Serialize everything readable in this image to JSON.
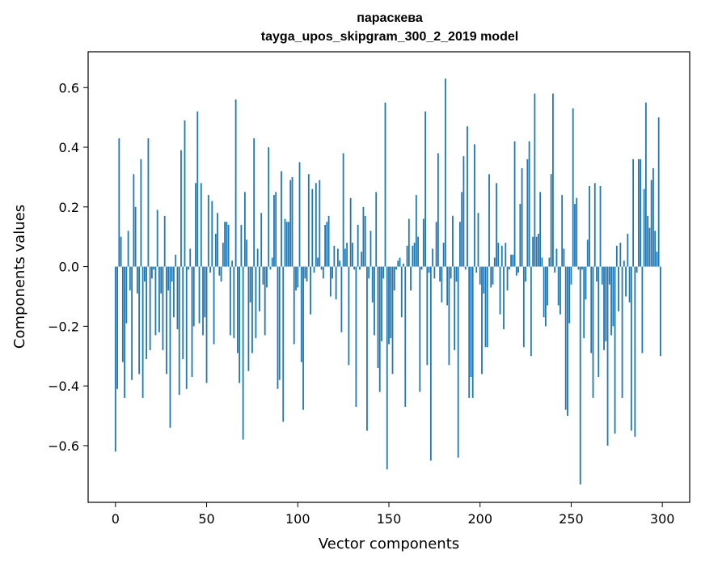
{
  "chart_data": {
    "type": "bar",
    "title": "параскева",
    "subtitle": "tayga_upos_skipgram_300_2_2019 model",
    "xlabel": "Vector components",
    "ylabel": "Components values",
    "xlim": [
      -15,
      315
    ],
    "ylim": [
      -0.79,
      0.72
    ],
    "xticks": [
      0,
      50,
      100,
      150,
      200,
      250,
      300
    ],
    "yticks": [
      -0.6,
      -0.4,
      -0.2,
      0.0,
      0.2,
      0.4,
      0.6
    ],
    "ytick_labels": [
      "−0.6",
      "−0.4",
      "−0.2",
      "0.0",
      "0.2",
      "0.4",
      "0.6"
    ],
    "grid": false,
    "bar_color": "#1f77b4",
    "series": [
      {
        "values": [
          -0.62,
          -0.41,
          0.43,
          0.1,
          -0.32,
          -0.44,
          -0.19,
          0.12,
          -0.08,
          -0.38,
          0.31,
          0.2,
          -0.09,
          -0.36,
          0.36,
          -0.44,
          -0.05,
          -0.31,
          0.43,
          -0.28,
          -0.04,
          -0.01,
          -0.23,
          0.19,
          -0.22,
          -0.09,
          -0.28,
          0.17,
          -0.36,
          -0.08,
          -0.54,
          -0.05,
          -0.17,
          0.04,
          -0.21,
          -0.43,
          0.39,
          -0.31,
          0.49,
          -0.41,
          -0.01,
          0.06,
          -0.37,
          -0.2,
          0.28,
          0.52,
          -0.19,
          0.28,
          -0.23,
          -0.17,
          -0.39,
          0.24,
          -0.02,
          0.22,
          -0.26,
          0.11,
          0.18,
          -0.03,
          -0.05,
          0.08,
          0.15,
          0.15,
          0.14,
          -0.23,
          0.02,
          -0.24,
          0.56,
          -0.29,
          -0.39,
          0.14,
          -0.58,
          0.25,
          0.09,
          -0.35,
          -0.12,
          -0.29,
          0.43,
          -0.24,
          0.06,
          -0.15,
          0.18,
          -0.06,
          -0.23,
          -0.07,
          0.4,
          -0.01,
          0.03,
          0.24,
          0.25,
          -0.41,
          -0.38,
          0.32,
          -0.52,
          0.16,
          0.15,
          0.15,
          0.29,
          0.3,
          -0.26,
          -0.08,
          -0.07,
          0.35,
          -0.32,
          -0.48,
          -0.04,
          -0.05,
          0.31,
          -0.16,
          0.26,
          -0.02,
          0.28,
          0.03,
          0.29,
          -0.01,
          -0.04,
          0.14,
          0.15,
          0.17,
          -0.1,
          -0.04,
          0.07,
          -0.11,
          0.06,
          0.02,
          -0.22,
          0.38,
          0.06,
          0.08,
          -0.33,
          0.23,
          0.08,
          -0.01,
          -0.47,
          0.14,
          -0.01,
          0.05,
          0.2,
          0.17,
          -0.55,
          -0.04,
          0.12,
          -0.12,
          -0.23,
          0.25,
          -0.34,
          -0.42,
          -0.25,
          -0.04,
          0.55,
          -0.68,
          -0.26,
          -0.24,
          -0.36,
          -0.08,
          -0.01,
          0.02,
          0.03,
          -0.17,
          0.01,
          -0.47,
          0.07,
          0.16,
          -0.08,
          0.07,
          0.08,
          0.24,
          0.1,
          -0.42,
          -0.01,
          0.16,
          0.52,
          -0.33,
          -0.02,
          -0.65,
          0.06,
          -0.04,
          0.15,
          0.38,
          -0.05,
          -0.12,
          0.08,
          0.63,
          -0.13,
          -0.33,
          -0.04,
          0.17,
          -0.28,
          -0.05,
          -0.64,
          0.15,
          0.25,
          0.37,
          -0.01,
          0.47,
          -0.44,
          -0.37,
          -0.44,
          0.41,
          -0.02,
          0.18,
          -0.06,
          -0.36,
          -0.09,
          -0.27,
          -0.27,
          0.31,
          -0.07,
          -0.06,
          0.03,
          0.28,
          0.08,
          -0.16,
          0.07,
          -0.21,
          0.08,
          -0.08,
          -0.01,
          0.04,
          0.04,
          0.42,
          -0.03,
          -0.02,
          0.21,
          0.33,
          -0.27,
          -0.05,
          0.36,
          0.42,
          -0.3,
          0.1,
          0.58,
          0.1,
          0.11,
          0.25,
          0.03,
          -0.17,
          -0.2,
          -0.13,
          0.03,
          0.31,
          0.58,
          -0.02,
          0.06,
          -0.13,
          -0.16,
          0.24,
          0.06,
          -0.48,
          -0.5,
          -0.19,
          -0.06,
          0.53,
          0.21,
          0.23,
          -0.01,
          -0.73,
          -0.01,
          -0.24,
          -0.11,
          0.09,
          0.27,
          -0.29,
          -0.44,
          0.28,
          -0.05,
          -0.37,
          0.27,
          -0.06,
          -0.28,
          -0.25,
          -0.6,
          -0.06,
          -0.23,
          -0.2,
          -0.56,
          0.07,
          -0.15,
          0.08,
          -0.44,
          0.02,
          -0.1,
          0.11,
          -0.12,
          -0.55,
          0.36,
          -0.57,
          -0.02,
          0.36,
          0.36,
          -0.29,
          0.26,
          0.55,
          0.17,
          0.13,
          0.29,
          0.33,
          0.12,
          0.05,
          0.5,
          -0.3
        ]
      }
    ]
  }
}
